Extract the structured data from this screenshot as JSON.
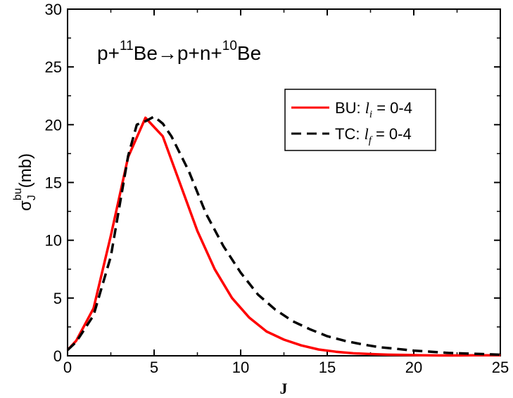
{
  "chart_data": {
    "type": "line",
    "xlabel": "J",
    "ylabel": {
      "symbol": "σ",
      "sup": "bu",
      "sub": "J",
      "unit": "(mb)"
    },
    "xlim": [
      0,
      25
    ],
    "ylim": [
      0,
      30
    ],
    "xticks": [
      "0",
      "5",
      "10",
      "15",
      "20",
      "25"
    ],
    "xtick_values": [
      0,
      5,
      10,
      15,
      20,
      25
    ],
    "yticks": [
      "0",
      "5",
      "10",
      "15",
      "20",
      "25",
      "30"
    ],
    "ytick_values": [
      0,
      5,
      10,
      15,
      20,
      25,
      30
    ],
    "grid": false,
    "legend_position": "top-right",
    "annotation": {
      "p1": "p+",
      "sup1": "11",
      "be1": "Be",
      "arrow": "→",
      "p2": "p+n+",
      "sup2": "10",
      "be2": "Be"
    },
    "series": [
      {
        "name": "BU",
        "legend_prefix": "BU: ",
        "legend_var": "l",
        "legend_sub": "i",
        "legend_suffix": " = 0-4",
        "color": "#ff0000",
        "style": "solid",
        "x": [
          0,
          0.5,
          1.5,
          2.5,
          3.5,
          4.5,
          5.5,
          6.5,
          7.5,
          8.5,
          9.5,
          10.5,
          11.5,
          12.5,
          13.5,
          14.5,
          15.5,
          16.5,
          17.5,
          18.5,
          19.5,
          20.5,
          21.5,
          22.5,
          23.5,
          24.5,
          25
        ],
        "y": [
          0.5,
          1.3,
          4.1,
          10.4,
          17.2,
          20.6,
          19.0,
          14.9,
          10.8,
          7.5,
          5.0,
          3.3,
          2.1,
          1.4,
          0.9,
          0.55,
          0.35,
          0.22,
          0.15,
          0.1,
          0.07,
          0.05,
          0.03,
          0.03,
          0.04,
          0.05,
          0.05
        ]
      },
      {
        "name": "TC",
        "legend_prefix": "TC: ",
        "legend_var": "l",
        "legend_sub": "f",
        "legend_suffix": " = 0-4",
        "color": "#000000",
        "style": "dashed",
        "x": [
          0,
          0.5,
          1.5,
          2.5,
          3.5,
          4.0,
          4.5,
          5.0,
          5.5,
          6.0,
          7.0,
          8.0,
          9.0,
          10.0,
          11.0,
          12.0,
          13.0,
          14.0,
          15.0,
          16.0,
          17.0,
          18.0,
          19.0,
          20.0,
          21.0,
          22.0,
          23.0,
          24.0,
          25.0
        ],
        "y": [
          0.5,
          1.2,
          3.5,
          8.6,
          17.3,
          20.0,
          20.3,
          20.7,
          20.1,
          19.0,
          16.0,
          12.3,
          9.5,
          7.2,
          5.3,
          4.0,
          3.0,
          2.3,
          1.7,
          1.3,
          1.0,
          0.75,
          0.6,
          0.45,
          0.35,
          0.25,
          0.2,
          0.15,
          0.1
        ]
      }
    ]
  }
}
